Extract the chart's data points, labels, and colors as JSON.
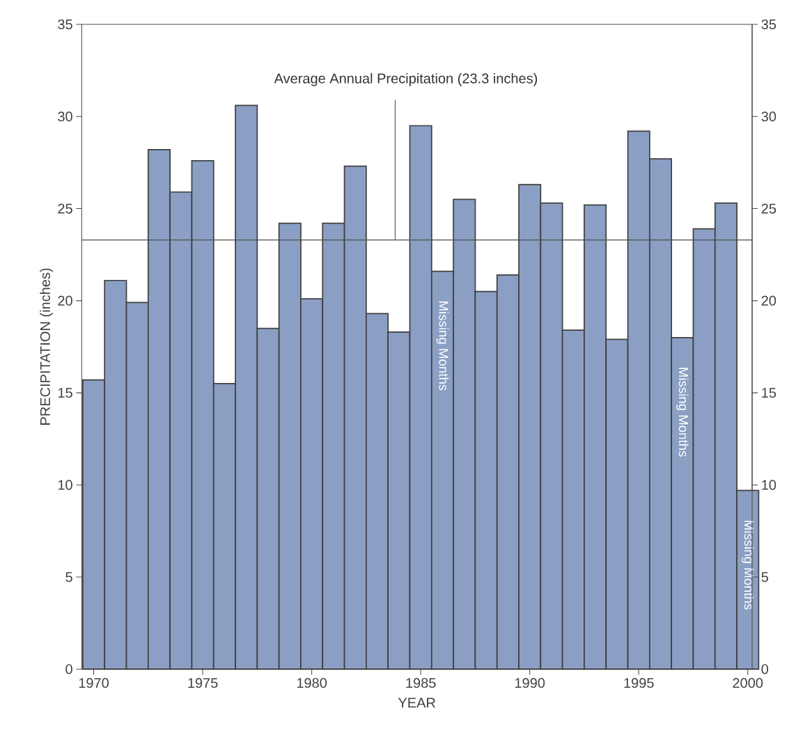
{
  "chart_data": {
    "type": "bar",
    "xlabel": "YEAR",
    "ylabel": "PRECIPITATION (inches)",
    "x": [
      1970,
      1971,
      1972,
      1973,
      1974,
      1975,
      1976,
      1977,
      1978,
      1979,
      1980,
      1981,
      1982,
      1983,
      1984,
      1985,
      1986,
      1987,
      1988,
      1989,
      1990,
      1991,
      1992,
      1993,
      1994,
      1995,
      1996,
      1997,
      1998,
      1999,
      2000
    ],
    "values": [
      15.7,
      21.1,
      19.9,
      28.2,
      25.9,
      27.6,
      15.5,
      30.6,
      18.5,
      24.2,
      20.1,
      24.2,
      27.3,
      19.3,
      18.3,
      29.5,
      21.6,
      25.5,
      20.5,
      21.4,
      26.3,
      25.3,
      18.4,
      25.2,
      17.9,
      29.2,
      27.7,
      18.0,
      23.9,
      25.3,
      9.7
    ],
    "color": "#8a9fc3",
    "xlim": [
      1969.45,
      2000.2
    ],
    "xticks": [
      1970,
      1975,
      1980,
      1985,
      1990,
      1995,
      2000
    ],
    "ylim": [
      0,
      35
    ],
    "yticks": [
      0,
      5,
      10,
      15,
      20,
      25,
      30,
      35
    ],
    "y2lim": [
      0,
      35
    ],
    "y2ticks": [
      0,
      5,
      10,
      15,
      20,
      25,
      30,
      35
    ],
    "ref_lines": [
      {
        "axis": "y",
        "value": 23.3,
        "label": "Average Annual Precipitation (23.3 inches)"
      }
    ],
    "annotations": [
      {
        "text": "Missing Months",
        "x": 1986,
        "y": 21.6
      },
      {
        "text": "Missing Months",
        "x": 1997,
        "y": 18.0
      },
      {
        "text": "Missing Months",
        "x": 2000,
        "y": 9.7
      }
    ]
  }
}
